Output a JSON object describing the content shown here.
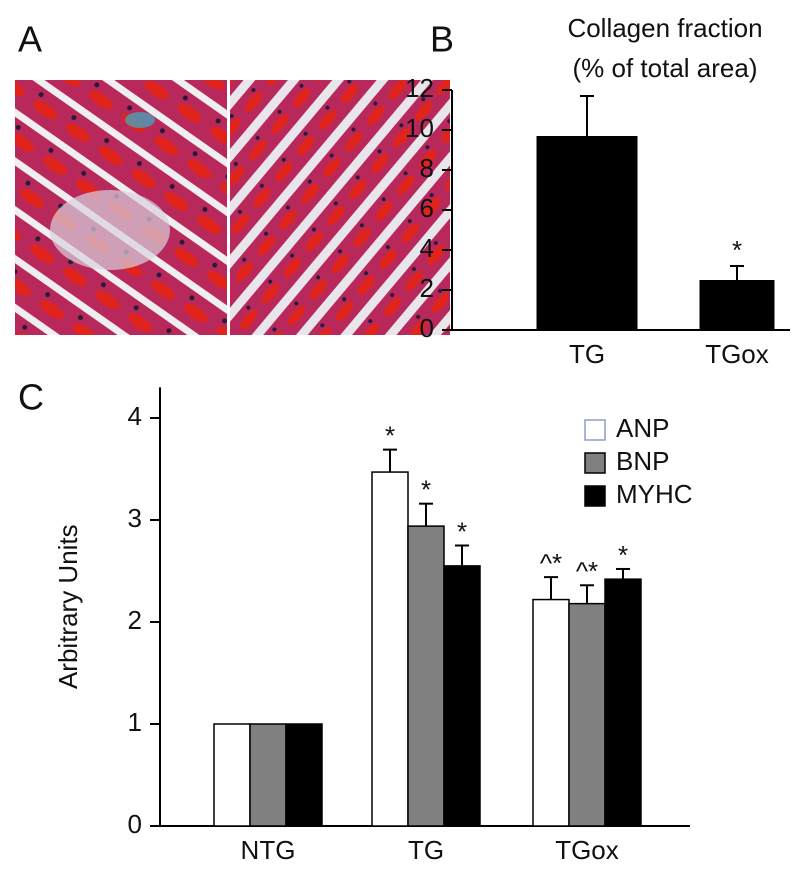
{
  "panel_labels": [
    "A",
    "B",
    "C"
  ],
  "chart_data": [
    {
      "type": "bar",
      "title": "Collagen fraction",
      "subtitle": "(% of total area)",
      "categories": [
        "TG",
        "TGox"
      ],
      "values": [
        9.7,
        2.5
      ],
      "errors": [
        2.0,
        0.7
      ],
      "color": "#000000",
      "annotations": [
        {
          "category": "TGox",
          "text": "*"
        }
      ],
      "ylim": [
        0,
        12
      ],
      "yticks": [
        0,
        2,
        4,
        6,
        8,
        10,
        12
      ]
    },
    {
      "type": "bar",
      "ylabel": "Arbitrary Units",
      "categories": [
        "NTG",
        "TG",
        "TGox"
      ],
      "series": [
        {
          "name": "ANP",
          "color": "#ffffff",
          "values": [
            1,
            3.47,
            2.22
          ],
          "errors": [
            null,
            0.22,
            0.22
          ],
          "annotations": [
            null,
            "*",
            "^*"
          ]
        },
        {
          "name": "BNP",
          "color": "#808080",
          "values": [
            1,
            2.94,
            2.18
          ],
          "errors": [
            null,
            0.22,
            0.18
          ],
          "annotations": [
            null,
            "*",
            "^*"
          ]
        },
        {
          "name": "MYHC",
          "color": "#000000",
          "values": [
            1,
            2.55,
            2.42
          ],
          "errors": [
            null,
            0.2,
            0.1
          ],
          "annotations": [
            null,
            "*",
            "*"
          ]
        }
      ],
      "ylim": [
        0,
        4.3
      ],
      "yticks": [
        0,
        1,
        2,
        3,
        4
      ],
      "legend": "upper right"
    }
  ]
}
